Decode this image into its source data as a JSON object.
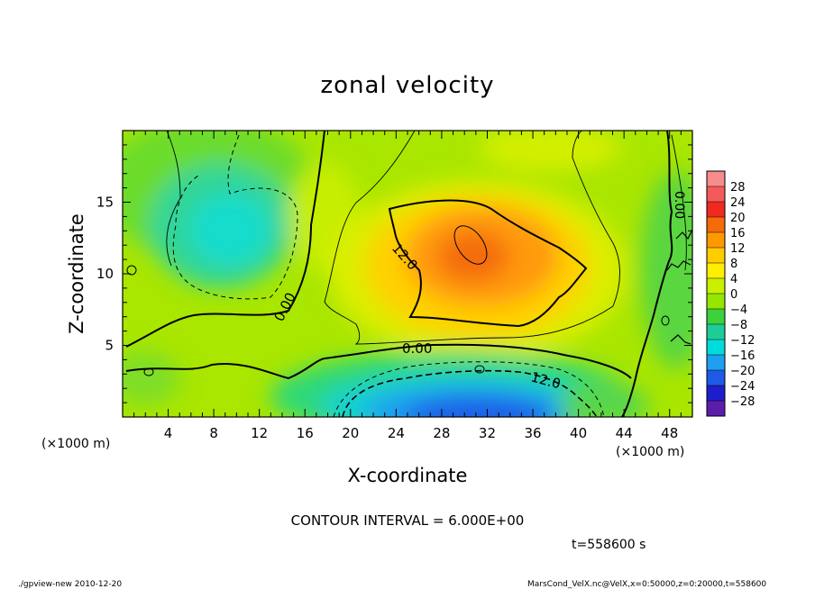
{
  "chart_data": {
    "type": "heatmap",
    "title": "zonal velocity",
    "xlabel": "X-coordinate",
    "ylabel": "Z-coordinate",
    "x_unit": "(×1000 m)",
    "x_unit_right": "(×1000 m)",
    "xlim": [
      0,
      50
    ],
    "ylim": [
      0,
      20
    ],
    "x_ticks": [
      "4",
      "8",
      "12",
      "16",
      "20",
      "24",
      "28",
      "32",
      "36",
      "40",
      "44",
      "48"
    ],
    "y_ticks": [
      "5",
      "10",
      "15"
    ],
    "colorbar": {
      "labels": [
        "28",
        "24",
        "20",
        "16",
        "12",
        "8",
        "4",
        "0",
        "−4",
        "−8",
        "−12",
        "−16",
        "−20",
        "−24",
        "−28"
      ],
      "colors": [
        "#f78c8c",
        "#f55a5a",
        "#f02a1e",
        "#f56a0a",
        "#ff9900",
        "#ffcc00",
        "#ffee00",
        "#c8f000",
        "#96e600",
        "#3cd23c",
        "#1ecd96",
        "#00dcdc",
        "#1ea0f0",
        "#1e5ae6",
        "#1e1ecd",
        "#5a1eaa"
      ]
    },
    "contour_labels": [
      "12.0",
      "0.00",
      "0.00",
      "12.0",
      "0.00"
    ],
    "contour_interval": "CONTOUR INTERVAL = 6.000E+00",
    "time": "t=558600 s"
  },
  "footer": {
    "left": "./gpview-new   2010-12-20",
    "right": "MarsCond_VelX.nc@VelX,x=0:50000,z=0:20000,t=558600"
  }
}
